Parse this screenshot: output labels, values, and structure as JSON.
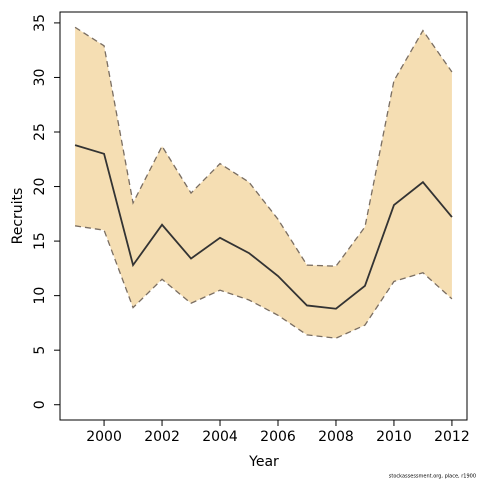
{
  "chart_data": {
    "type": "line",
    "xlabel": "Year",
    "ylabel": "Recruits",
    "footer": "stockassessment.org, place, r1900",
    "x": [
      1999,
      2000,
      2001,
      2002,
      2003,
      2004,
      2005,
      2006,
      2007,
      2008,
      2009,
      2010,
      2011,
      2012
    ],
    "values": [
      23.8,
      23.0,
      12.8,
      16.5,
      13.4,
      15.3,
      13.9,
      11.8,
      9.1,
      8.8,
      10.9,
      18.3,
      20.4,
      17.2
    ],
    "upper": [
      34.6,
      32.9,
      18.5,
      23.7,
      19.4,
      22.1,
      20.4,
      17.0,
      12.8,
      12.7,
      16.3,
      29.7,
      34.3,
      30.5
    ],
    "lower": [
      16.4,
      16.0,
      8.9,
      11.5,
      9.3,
      10.5,
      9.6,
      8.2,
      6.4,
      6.1,
      7.3,
      11.3,
      12.1,
      9.7
    ],
    "color": "#333333",
    "band_color": "#f5deb3",
    "bound_color": "#7a6e62",
    "xlim": [
      1998.48,
      2012.52
    ],
    "ylim": [
      -1.4,
      36
    ],
    "xticks": [
      2000,
      2002,
      2004,
      2006,
      2008,
      2010,
      2012
    ],
    "yticks": [
      0,
      5,
      10,
      15,
      20,
      25,
      30,
      35
    ]
  }
}
